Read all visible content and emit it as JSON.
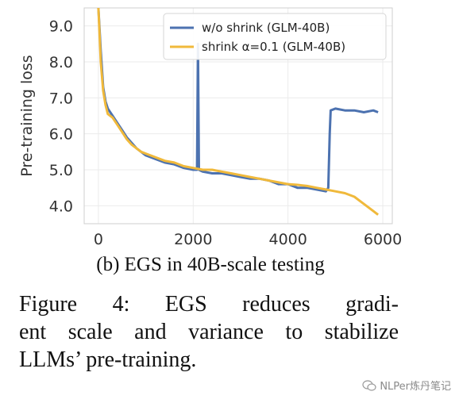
{
  "chart_data": {
    "type": "line",
    "xlabel": "",
    "ylabel": "Pre-training loss",
    "xlim": [
      -300,
      6200
    ],
    "ylim": [
      3.5,
      9.5
    ],
    "xticks": [
      0,
      2000,
      4000,
      6000
    ],
    "xtick_labels": [
      "0",
      "2000",
      "4000",
      "6000"
    ],
    "yticks": [
      4.0,
      5.0,
      6.0,
      7.0,
      8.0,
      9.0
    ],
    "ytick_labels": [
      "4.0",
      "5.0",
      "6.0",
      "7.0",
      "8.0",
      "9.0"
    ],
    "grid": true,
    "legend_position": "top-right",
    "series": [
      {
        "name": "w/o shrink (GLM-40B)",
        "color": "#4C72B0",
        "points": [
          [
            0,
            9.5
          ],
          [
            50,
            8.3
          ],
          [
            100,
            7.3
          ],
          [
            150,
            6.9
          ],
          [
            200,
            6.7
          ],
          [
            300,
            6.5
          ],
          [
            400,
            6.3
          ],
          [
            500,
            6.1
          ],
          [
            600,
            5.9
          ],
          [
            700,
            5.75
          ],
          [
            800,
            5.6
          ],
          [
            900,
            5.5
          ],
          [
            1000,
            5.4
          ],
          [
            1200,
            5.3
          ],
          [
            1400,
            5.2
          ],
          [
            1600,
            5.15
          ],
          [
            1800,
            5.05
          ],
          [
            2000,
            5.0
          ],
          [
            2080,
            5.0
          ],
          [
            2100,
            8.5
          ],
          [
            2120,
            5.0
          ],
          [
            2200,
            4.95
          ],
          [
            2400,
            4.9
          ],
          [
            2600,
            4.9
          ],
          [
            2800,
            4.85
          ],
          [
            3000,
            4.8
          ],
          [
            3200,
            4.75
          ],
          [
            3400,
            4.75
          ],
          [
            3600,
            4.7
          ],
          [
            3800,
            4.6
          ],
          [
            4000,
            4.6
          ],
          [
            4200,
            4.5
          ],
          [
            4400,
            4.5
          ],
          [
            4600,
            4.45
          ],
          [
            4800,
            4.4
          ],
          [
            4850,
            4.5
          ],
          [
            4880,
            6.0
          ],
          [
            4900,
            6.65
          ],
          [
            5000,
            6.7
          ],
          [
            5200,
            6.65
          ],
          [
            5400,
            6.65
          ],
          [
            5600,
            6.6
          ],
          [
            5800,
            6.65
          ],
          [
            5900,
            6.6
          ]
        ]
      },
      {
        "name": "shrink α=0.1 (GLM-40B)",
        "color": "#F0B93B",
        "points": [
          [
            0,
            9.5
          ],
          [
            50,
            8.0
          ],
          [
            100,
            7.2
          ],
          [
            150,
            6.8
          ],
          [
            200,
            6.55
          ],
          [
            300,
            6.45
          ],
          [
            400,
            6.25
          ],
          [
            500,
            6.05
          ],
          [
            600,
            5.85
          ],
          [
            700,
            5.7
          ],
          [
            800,
            5.6
          ],
          [
            900,
            5.5
          ],
          [
            1000,
            5.45
          ],
          [
            1200,
            5.35
          ],
          [
            1400,
            5.25
          ],
          [
            1600,
            5.2
          ],
          [
            1800,
            5.1
          ],
          [
            2000,
            5.05
          ],
          [
            2200,
            5.0
          ],
          [
            2400,
            5.0
          ],
          [
            2600,
            4.95
          ],
          [
            2800,
            4.9
          ],
          [
            3000,
            4.85
          ],
          [
            3200,
            4.8
          ],
          [
            3400,
            4.75
          ],
          [
            3600,
            4.7
          ],
          [
            3800,
            4.65
          ],
          [
            4000,
            4.6
          ],
          [
            4200,
            4.58
          ],
          [
            4400,
            4.55
          ],
          [
            4600,
            4.5
          ],
          [
            4800,
            4.45
          ],
          [
            5000,
            4.4
          ],
          [
            5200,
            4.35
          ],
          [
            5400,
            4.25
          ],
          [
            5600,
            4.05
          ],
          [
            5800,
            3.85
          ],
          [
            5900,
            3.75
          ]
        ]
      }
    ]
  },
  "subcaption": "(b) EGS in 40B-scale testing",
  "caption": {
    "lines": [
      "Figure 4:  EGS reduces gradi-",
      "ent scale and variance to stabilize",
      "LLMs’ pre-training."
    ]
  },
  "watermark": "NLPer炼丹笔记"
}
